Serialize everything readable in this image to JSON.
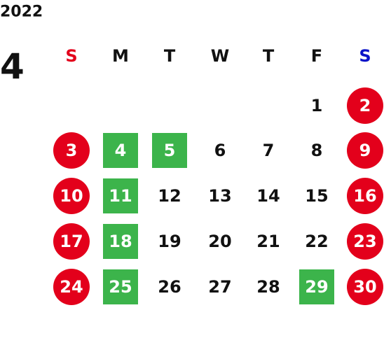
{
  "year": "2022",
  "month": "4",
  "weekdays": [
    {
      "label": "S",
      "color": "#e3001b"
    },
    {
      "label": "M",
      "color": "#111111"
    },
    {
      "label": "T",
      "color": "#111111"
    },
    {
      "label": "W",
      "color": "#111111"
    },
    {
      "label": "T",
      "color": "#111111"
    },
    {
      "label": "F",
      "color": "#111111"
    },
    {
      "label": "S",
      "color": "#0a14c8"
    }
  ],
  "weeks": [
    [
      null,
      null,
      null,
      null,
      null,
      {
        "day": 1
      },
      {
        "day": 2,
        "color": "#e3001b",
        "shape": "circle"
      }
    ],
    [
      {
        "day": 3,
        "color": "#e3001b",
        "shape": "circle"
      },
      {
        "day": 4,
        "color": "#3cb44b",
        "shape": "square"
      },
      {
        "day": 5,
        "color": "#3cb44b",
        "shape": "square"
      },
      {
        "day": 6
      },
      {
        "day": 7
      },
      {
        "day": 8
      },
      {
        "day": 9,
        "color": "#e3001b",
        "shape": "circle"
      }
    ],
    [
      {
        "day": 10,
        "color": "#e3001b",
        "shape": "circle"
      },
      {
        "day": 11,
        "color": "#3cb44b",
        "shape": "square"
      },
      {
        "day": 12
      },
      {
        "day": 13
      },
      {
        "day": 14
      },
      {
        "day": 15
      },
      {
        "day": 16,
        "color": "#e3001b",
        "shape": "circle"
      }
    ],
    [
      {
        "day": 17,
        "color": "#e3001b",
        "shape": "circle"
      },
      {
        "day": 18,
        "color": "#3cb44b",
        "shape": "square"
      },
      {
        "day": 19
      },
      {
        "day": 20
      },
      {
        "day": 21
      },
      {
        "day": 22
      },
      {
        "day": 23,
        "color": "#e3001b",
        "shape": "circle"
      }
    ],
    [
      {
        "day": 24,
        "color": "#e3001b",
        "shape": "circle"
      },
      {
        "day": 25,
        "color": "#3cb44b",
        "shape": "square"
      },
      {
        "day": 26
      },
      {
        "day": 27
      },
      {
        "day": 28
      },
      {
        "day": 29,
        "color": "#3cb44b",
        "shape": "square"
      },
      {
        "day": 30,
        "color": "#e3001b",
        "shape": "circle"
      }
    ]
  ]
}
